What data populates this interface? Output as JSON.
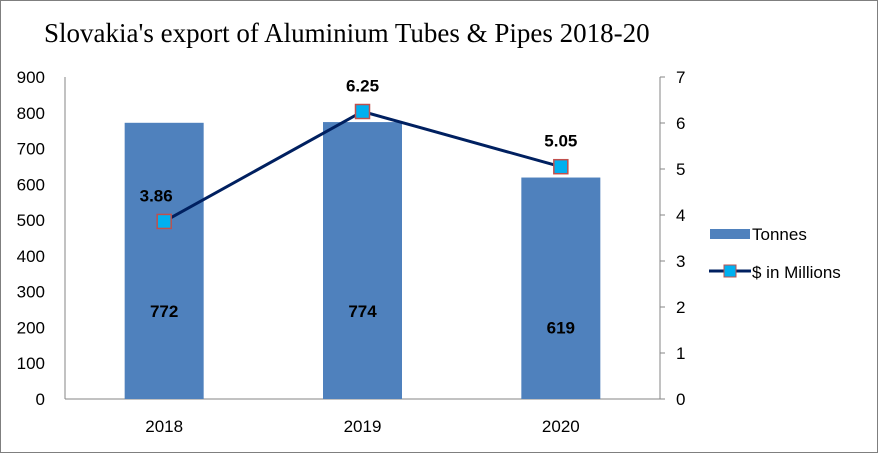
{
  "chart_data": {
    "type": "bar+line",
    "title": "Slovakia's export of Aluminium Tubes & Pipes 2018-20",
    "categories": [
      "2018",
      "2019",
      "2020"
    ],
    "series": [
      {
        "name": "Tonnes",
        "type": "bar",
        "axis": "left",
        "values": [
          772,
          774,
          619
        ],
        "color": "#4f81bd",
        "data_labels": [
          "772",
          "774",
          "619"
        ]
      },
      {
        "name": "$ in Millions",
        "type": "line",
        "axis": "right",
        "values": [
          3.86,
          6.25,
          5.05
        ],
        "color": "#002060",
        "marker_color": "#00b0f0",
        "marker_border": "#c0504d",
        "data_labels": [
          "3.86",
          "6.25",
          "5.05"
        ]
      }
    ],
    "y_left": {
      "lim": [
        0,
        900
      ],
      "ticks": [
        "0",
        "100",
        "200",
        "300",
        "400",
        "500",
        "600",
        "700",
        "800",
        "900"
      ]
    },
    "y_right": {
      "lim": [
        0,
        7
      ],
      "ticks": [
        "0",
        "1",
        "2",
        "3",
        "4",
        "5",
        "6",
        "7"
      ]
    },
    "grid": false,
    "legend_position": "right"
  }
}
